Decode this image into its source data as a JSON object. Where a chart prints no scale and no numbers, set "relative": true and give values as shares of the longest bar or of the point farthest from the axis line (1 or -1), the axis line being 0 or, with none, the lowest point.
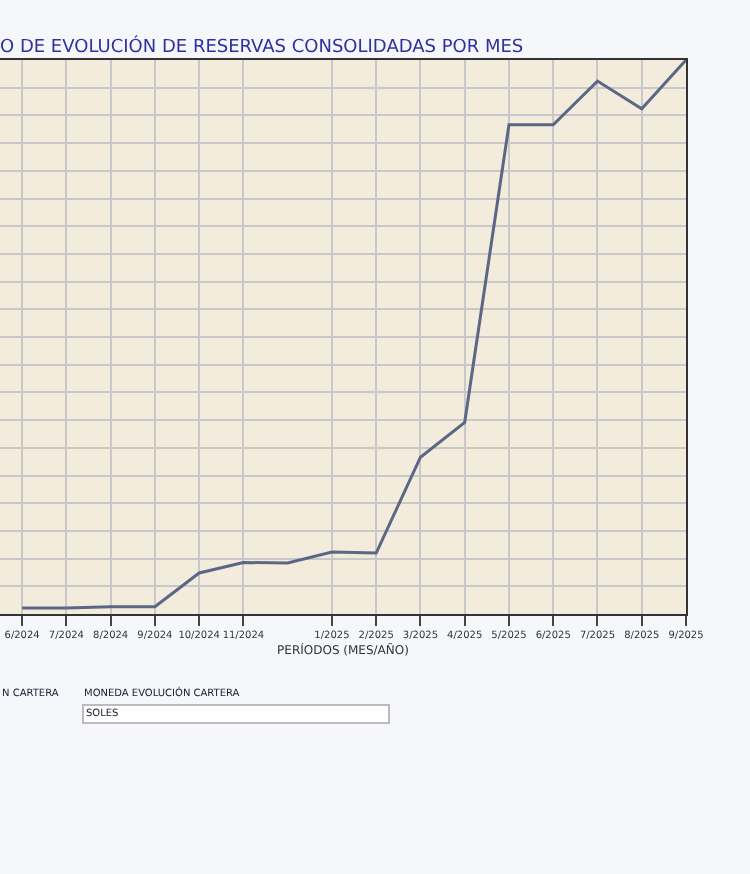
{
  "chart_data": {
    "type": "line",
    "title": "O DE EVOLUCIÓN DE RESERVAS CONSOLIDADAS POR MES",
    "xlabel": "PERÍODOS (MES/AÑO)",
    "categories": [
      "6/2024",
      "7/2024",
      "8/2024",
      "9/2024",
      "10/2024",
      "11/2024",
      null,
      "1/2025",
      "2/2025",
      "3/2025",
      "4/2025",
      "5/2025",
      "6/2025",
      "7/2025",
      "8/2025",
      "9/2025"
    ],
    "series": [
      {
        "color": "#5b6784",
        "values": [
          0.011,
          0.011,
          0.013,
          0.013,
          0.074,
          0.093,
          0.092,
          0.112,
          0.11,
          0.283,
          0.346,
          0.883,
          0.883,
          0.962,
          0.912,
          1
        ]
      }
    ],
    "relative": true,
    "grid": true,
    "marker": "none",
    "line_style": "solid",
    "annotations": [
      "N CARTERA",
      "MONEDA EVOLUCIÓN CARTERA",
      "SOLES"
    ]
  }
}
